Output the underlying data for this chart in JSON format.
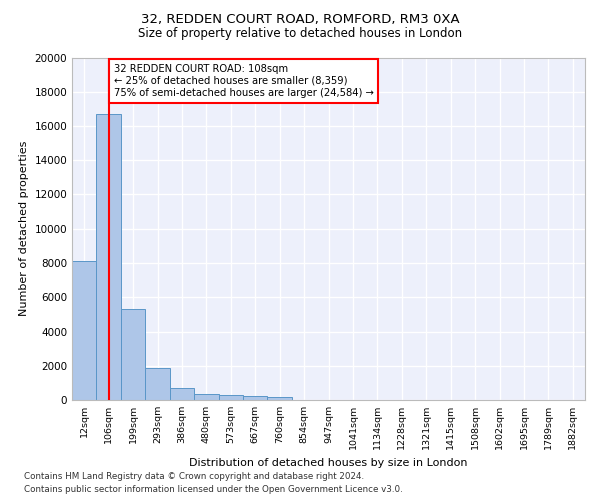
{
  "title_line1": "32, REDDEN COURT ROAD, ROMFORD, RM3 0XA",
  "title_line2": "Size of property relative to detached houses in London",
  "xlabel": "Distribution of detached houses by size in London",
  "ylabel": "Number of detached properties",
  "bar_labels": [
    "12sqm",
    "106sqm",
    "199sqm",
    "293sqm",
    "386sqm",
    "480sqm",
    "573sqm",
    "667sqm",
    "760sqm",
    "854sqm",
    "947sqm",
    "1041sqm",
    "1134sqm",
    "1228sqm",
    "1321sqm",
    "1415sqm",
    "1508sqm",
    "1602sqm",
    "1695sqm",
    "1789sqm",
    "1882sqm"
  ],
  "bar_values": [
    8100,
    16700,
    5300,
    1850,
    700,
    370,
    290,
    210,
    150,
    0,
    0,
    0,
    0,
    0,
    0,
    0,
    0,
    0,
    0,
    0,
    0
  ],
  "bar_color": "#aec6e8",
  "bar_edge_color": "#5a96c8",
  "ylim": [
    0,
    20000
  ],
  "yticks": [
    0,
    2000,
    4000,
    6000,
    8000,
    10000,
    12000,
    14000,
    16000,
    18000,
    20000
  ],
  "property_line_x": 1.0,
  "annotation_text_line1": "32 REDDEN COURT ROAD: 108sqm",
  "annotation_text_line2": "← 25% of detached houses are smaller (8,359)",
  "annotation_text_line3": "75% of semi-detached houses are larger (24,584) →",
  "footer_line1": "Contains HM Land Registry data © Crown copyright and database right 2024.",
  "footer_line2": "Contains public sector information licensed under the Open Government Licence v3.0.",
  "background_color": "#edf0fb",
  "grid_color": "#ffffff"
}
